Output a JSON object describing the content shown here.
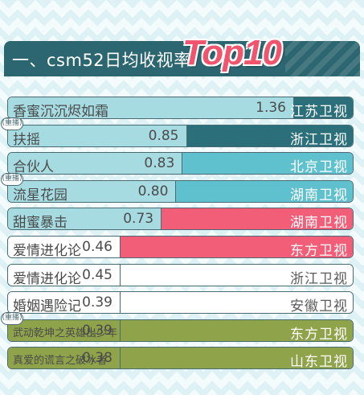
{
  "title": "一、csm52日均收视率",
  "title_badge": "Top10",
  "rerun_label": "(重播)",
  "colors": {
    "title_bg": "#2c6670",
    "badge": "#f1546d",
    "zhejiang_dark": "#2b6f7a",
    "teal": "#5fc1cd",
    "light_teal": "#a6dbe2",
    "pink": "#f25d77",
    "olive": "#8fa34a",
    "outline": "#4a6b73"
  },
  "chart_data": {
    "type": "bar",
    "title": "一、csm52日均收视率 Top10",
    "orientation": "horizontal",
    "categories": [
      "香蜜沉沉烬如霜",
      "扶摇",
      "合伙人",
      "流星花园",
      "甜蜜暴击",
      "爱情进化论",
      "爱情进化论",
      "婚姻遇险记",
      "武动乾坤之英雄出少年",
      "真爱的谎言之破冰者"
    ],
    "values": [
      1.36,
      0.85,
      0.83,
      0.8,
      0.73,
      0.46,
      0.45,
      0.39,
      0.39,
      0.38
    ],
    "value_labels": [
      "1.36",
      "0.85",
      "0.83",
      "0.80",
      "0.73",
      "0.46",
      "0.45",
      "0.39",
      "0.39",
      "0.38"
    ],
    "channels": [
      "江苏卫视",
      "浙江卫视",
      "北京卫视",
      "湖南卫视",
      "湖南卫视",
      "东方卫视",
      "浙江卫视",
      "安徽卫视",
      "东方卫视",
      "山东卫视"
    ],
    "rerun": [
      false,
      true,
      false,
      true,
      false,
      false,
      false,
      false,
      true,
      false
    ],
    "xlim": [
      0,
      1.36
    ],
    "grid": false,
    "legend": "none"
  }
}
